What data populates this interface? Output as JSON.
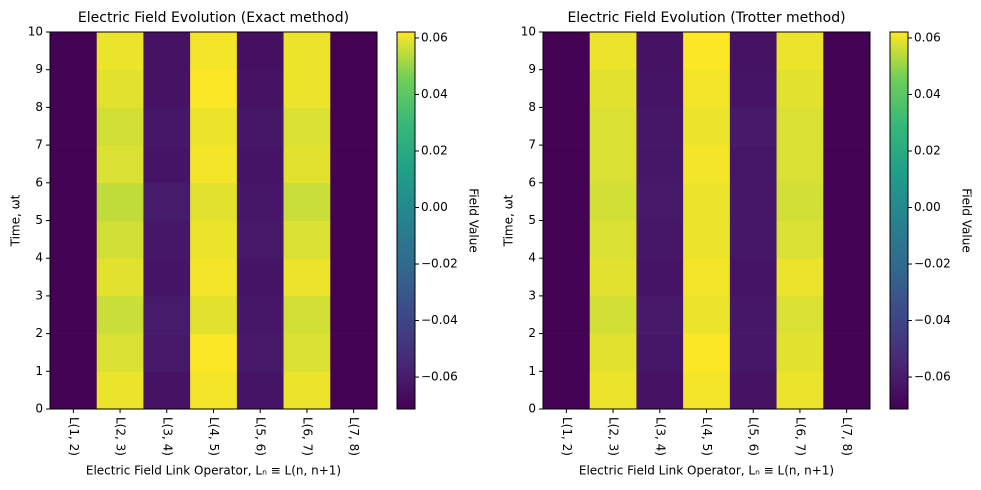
{
  "chart_data": [
    {
      "type": "heatmap",
      "title": "Electric Field Evolution (Exact method)",
      "x_label": "Electric Field Link Operator, Lₙ ≡ L(n, n+1)",
      "y_label": "Time, ωt",
      "colorbar_label": "Field Value",
      "colormap": "viridis",
      "categories": [
        "L(1, 2)",
        "L(2, 3)",
        "L(3, 4)",
        "L(4, 5)",
        "L(5, 6)",
        "L(6, 7)",
        "L(7, 8)"
      ],
      "y_edges": [
        0,
        1,
        2,
        3,
        4,
        5,
        6,
        7,
        8,
        9,
        10
      ],
      "ylim": [
        0,
        10
      ],
      "yticks": [
        0,
        1,
        2,
        3,
        4,
        5,
        6,
        7,
        8,
        9,
        10
      ],
      "clim": [
        -0.0713,
        0.0621
      ],
      "cticks": [
        {
          "value": -0.06,
          "label": "−0.06"
        },
        {
          "value": -0.04,
          "label": "−0.04"
        },
        {
          "value": -0.02,
          "label": "−0.02"
        },
        {
          "value": 0,
          "label": "0.00"
        },
        0.02,
        0.04,
        0.06
      ],
      "z": [
        [
          -0.071,
          0.06,
          -0.064,
          0.061,
          -0.063,
          0.06,
          -0.071
        ],
        [
          -0.071,
          0.058,
          -0.061,
          0.062,
          -0.061,
          0.058,
          -0.071
        ],
        [
          -0.071,
          0.056,
          -0.06,
          0.059,
          -0.062,
          0.057,
          -0.071
        ],
        [
          -0.071,
          0.059,
          -0.063,
          0.061,
          -0.063,
          0.06,
          -0.071
        ],
        [
          -0.071,
          0.057,
          -0.062,
          0.06,
          -0.061,
          0.058,
          -0.071
        ],
        [
          -0.071,
          0.055,
          -0.06,
          0.059,
          -0.062,
          0.056,
          -0.071
        ],
        [
          -0.071,
          0.058,
          -0.063,
          0.061,
          -0.063,
          0.059,
          -0.071
        ],
        [
          -0.071,
          0.057,
          -0.062,
          0.06,
          -0.062,
          0.058,
          -0.071
        ],
        [
          -0.071,
          0.059,
          -0.064,
          0.062,
          -0.064,
          0.06,
          -0.071
        ],
        [
          -0.071,
          0.06,
          -0.064,
          0.061,
          -0.065,
          0.06,
          -0.071
        ]
      ]
    },
    {
      "type": "heatmap",
      "title": "Electric Field Evolution (Trotter method)",
      "x_label": "Electric Field Link Operator, Lₙ ≡ L(n, n+1)",
      "y_label": "Time, ωt",
      "colorbar_label": "Field Value",
      "colormap": "viridis",
      "categories": [
        "L(1, 2)",
        "L(2, 3)",
        "L(3, 4)",
        "L(4, 5)",
        "L(5, 6)",
        "L(6, 7)",
        "L(7, 8)"
      ],
      "y_edges": [
        0,
        1,
        2,
        3,
        4,
        5,
        6,
        7,
        8,
        9,
        10
      ],
      "ylim": [
        0,
        10
      ],
      "yticks": [
        0,
        1,
        2,
        3,
        4,
        5,
        6,
        7,
        8,
        9,
        10
      ],
      "clim": [
        -0.0713,
        0.0621
      ],
      "cticks": [
        {
          "value": -0.06,
          "label": "−0.06"
        },
        {
          "value": -0.04,
          "label": "−0.04"
        },
        {
          "value": -0.02,
          "label": "−0.02"
        },
        {
          "value": 0,
          "label": "0.00"
        },
        0.02,
        0.04,
        0.06
      ],
      "z": [
        [
          -0.071,
          0.06,
          -0.064,
          0.061,
          -0.064,
          0.06,
          -0.071
        ],
        [
          -0.071,
          0.059,
          -0.062,
          0.062,
          -0.062,
          0.059,
          -0.071
        ],
        [
          -0.071,
          0.057,
          -0.061,
          0.06,
          -0.062,
          0.058,
          -0.071
        ],
        [
          -0.071,
          0.059,
          -0.063,
          0.061,
          -0.063,
          0.06,
          -0.071
        ],
        [
          -0.071,
          0.058,
          -0.062,
          0.06,
          -0.062,
          0.058,
          -0.071
        ],
        [
          -0.071,
          0.057,
          -0.061,
          0.06,
          -0.062,
          0.057,
          -0.071
        ],
        [
          -0.071,
          0.058,
          -0.062,
          0.061,
          -0.062,
          0.058,
          -0.071
        ],
        [
          -0.071,
          0.058,
          -0.062,
          0.06,
          -0.061,
          0.058,
          -0.071
        ],
        [
          -0.071,
          0.059,
          -0.063,
          0.061,
          -0.063,
          0.059,
          -0.071
        ],
        [
          -0.071,
          0.06,
          -0.064,
          0.062,
          -0.064,
          0.06,
          -0.071
        ]
      ]
    }
  ]
}
